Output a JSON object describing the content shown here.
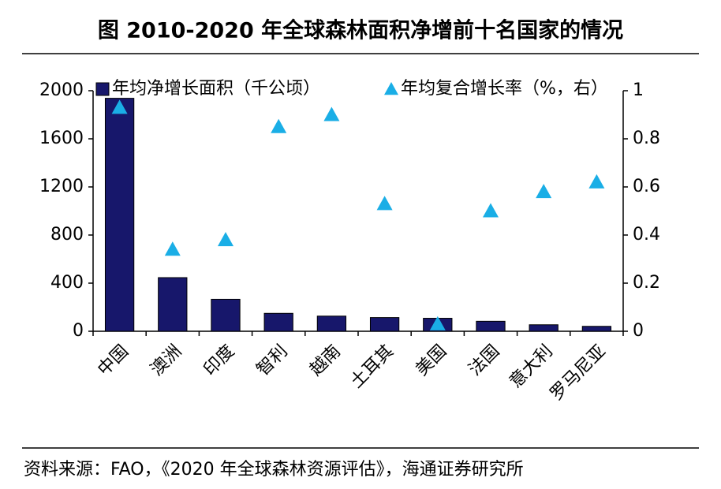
{
  "chart_data": {
    "type": "bar",
    "title": "图 2010-2020 年全球森林面积净增前十名国家的情况",
    "source": "资料来源：FAO，《2020 年全球森林资源评估》，海通证券研究所",
    "categories": [
      "中国",
      "澳洲",
      "印度",
      "智利",
      "越南",
      "土耳其",
      "美国",
      "法国",
      "意大利",
      "罗马尼亚"
    ],
    "series": [
      {
        "name": "年均净增长面积（千公顷）",
        "type": "bar",
        "color": "#17176b",
        "values": [
          1937,
          446,
          266,
          149,
          126,
          114,
          108,
          83,
          54,
          41
        ]
      },
      {
        "name": "年均复合增长率（%，右）",
        "type": "scatter",
        "axis": "y2",
        "color": "#1aaee6",
        "values": [
          0.93,
          0.34,
          0.38,
          0.85,
          0.9,
          0.53,
          0.03,
          0.5,
          0.58,
          0.62
        ]
      }
    ],
    "ylim": [
      0,
      2000
    ],
    "yticks": [
      0,
      400,
      800,
      1200,
      1600,
      2000
    ],
    "y2lim": [
      0,
      1
    ],
    "y2ticks": [
      0,
      0.2,
      0.4,
      0.6,
      0.8,
      1
    ],
    "grid": false
  }
}
